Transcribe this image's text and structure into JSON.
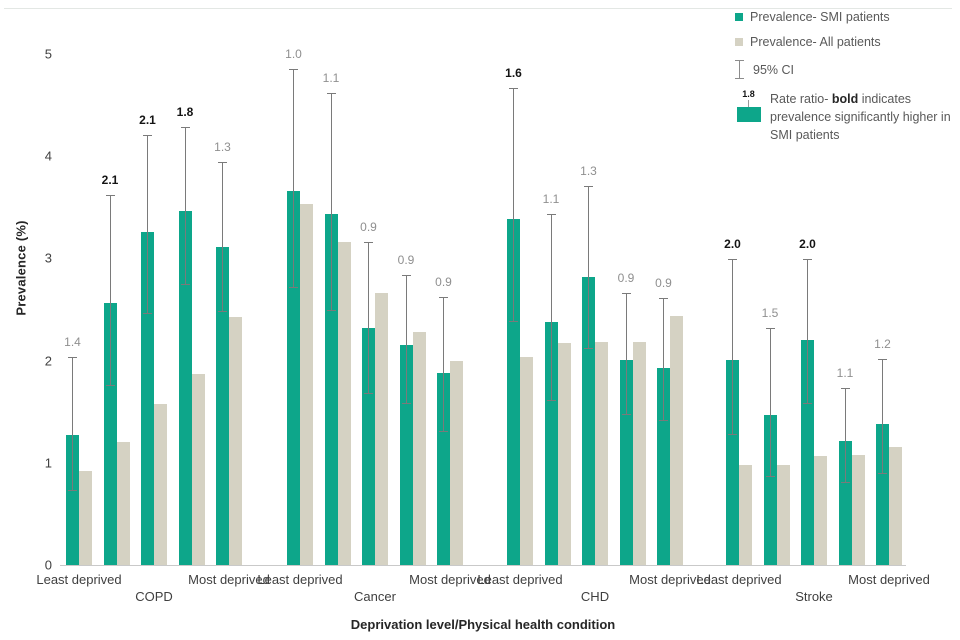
{
  "chart_data": {
    "type": "bar",
    "title": "",
    "xlabel": "Deprivation level/Physical health condition",
    "ylabel": "Prevalence (%)",
    "ylim": [
      0,
      5
    ],
    "yticks": [
      0,
      1,
      2,
      3,
      4,
      5
    ],
    "grid": false,
    "legend_position": "top-right",
    "series_names": [
      "Prevalence- SMI patients",
      "Prevalence- All patients"
    ],
    "colors": {
      "smi_bar": "#0da68a",
      "all_bar": "#d5d2c3",
      "ci_line": "#7a7a7a",
      "ratio_normal": "#8f8f8f",
      "ratio_significant": "#141414",
      "axis_line": "#c9c9c9"
    },
    "groups": [
      {
        "condition": "COPD",
        "left_label": "Least deprived",
        "right_label": "Most deprived",
        "bars": [
          {
            "smi": 1.27,
            "all": 0.92,
            "ci_low": 0.72,
            "ci_high": 2.04,
            "rate_ratio": "1.4",
            "significant": false
          },
          {
            "smi": 2.56,
            "all": 1.2,
            "ci_low": 1.75,
            "ci_high": 3.62,
            "rate_ratio": "2.1",
            "significant": true
          },
          {
            "smi": 3.26,
            "all": 1.58,
            "ci_low": 2.46,
            "ci_high": 4.21,
            "rate_ratio": "2.1",
            "significant": true
          },
          {
            "smi": 3.46,
            "all": 1.87,
            "ci_low": 2.74,
            "ci_high": 4.29,
            "rate_ratio": "1.8",
            "significant": true
          },
          {
            "smi": 3.11,
            "all": 2.43,
            "ci_low": 2.48,
            "ci_high": 3.94,
            "rate_ratio": "1.3",
            "significant": false
          }
        ]
      },
      {
        "condition": "Cancer",
        "left_label": "Least deprived",
        "right_label": "Most deprived",
        "bars": [
          {
            "smi": 3.66,
            "all": 3.53,
            "ci_low": 2.71,
            "ci_high": 4.85,
            "rate_ratio": "1.0",
            "significant": false
          },
          {
            "smi": 3.43,
            "all": 3.16,
            "ci_low": 2.49,
            "ci_high": 4.62,
            "rate_ratio": "1.1",
            "significant": false
          },
          {
            "smi": 2.32,
            "all": 2.66,
            "ci_low": 1.67,
            "ci_high": 3.16,
            "rate_ratio": "0.9",
            "significant": false
          },
          {
            "smi": 2.15,
            "all": 2.28,
            "ci_low": 1.58,
            "ci_high": 2.84,
            "rate_ratio": "0.9",
            "significant": false
          },
          {
            "smi": 1.88,
            "all": 2.0,
            "ci_low": 1.3,
            "ci_high": 2.62,
            "rate_ratio": "0.9",
            "significant": false
          }
        ]
      },
      {
        "condition": "CHD",
        "left_label": "Least deprived",
        "right_label": "Most deprived",
        "bars": [
          {
            "smi": 3.39,
            "all": 2.04,
            "ci_low": 2.38,
            "ci_high": 4.67,
            "rate_ratio": "1.6",
            "significant": true
          },
          {
            "smi": 2.38,
            "all": 2.17,
            "ci_low": 1.6,
            "ci_high": 3.43,
            "rate_ratio": "1.1",
            "significant": false
          },
          {
            "smi": 2.82,
            "all": 2.18,
            "ci_low": 2.11,
            "ci_high": 3.71,
            "rate_ratio": "1.3",
            "significant": false
          },
          {
            "smi": 2.01,
            "all": 2.18,
            "ci_low": 1.47,
            "ci_high": 2.66,
            "rate_ratio": "0.9",
            "significant": false
          },
          {
            "smi": 1.93,
            "all": 2.44,
            "ci_low": 1.41,
            "ci_high": 2.61,
            "rate_ratio": "0.9",
            "significant": false
          }
        ]
      },
      {
        "condition": "Stroke",
        "left_label": "Least deprived",
        "right_label": "Most deprived",
        "bars": [
          {
            "smi": 2.01,
            "all": 0.98,
            "ci_low": 1.27,
            "ci_high": 2.99,
            "rate_ratio": "2.0",
            "significant": true
          },
          {
            "smi": 1.47,
            "all": 0.98,
            "ci_low": 0.86,
            "ci_high": 2.32,
            "rate_ratio": "1.5",
            "significant": false
          },
          {
            "smi": 2.2,
            "all": 1.07,
            "ci_low": 1.58,
            "ci_high": 2.99,
            "rate_ratio": "2.0",
            "significant": true
          },
          {
            "smi": 1.21,
            "all": 1.08,
            "ci_low": 0.8,
            "ci_high": 1.73,
            "rate_ratio": "1.1",
            "significant": false
          },
          {
            "smi": 1.38,
            "all": 1.15,
            "ci_low": 0.89,
            "ci_high": 2.02,
            "rate_ratio": "1.2",
            "significant": false
          }
        ]
      }
    ]
  },
  "legend": {
    "items": [
      {
        "icon": "teal-square-icon",
        "label": "Prevalence- SMI patients"
      },
      {
        "icon": "gray-square-icon",
        "label": "Prevalence- All patients"
      },
      {
        "icon": "error-bar-icon",
        "label": "95% CI"
      },
      {
        "icon": "rate-ratio-example-icon",
        "example_value": "1.8",
        "label_pre": "Rate ratio- ",
        "label_bold": "bold",
        "label_post": " indicates prevalence significantly higher in SMI patients"
      }
    ]
  }
}
